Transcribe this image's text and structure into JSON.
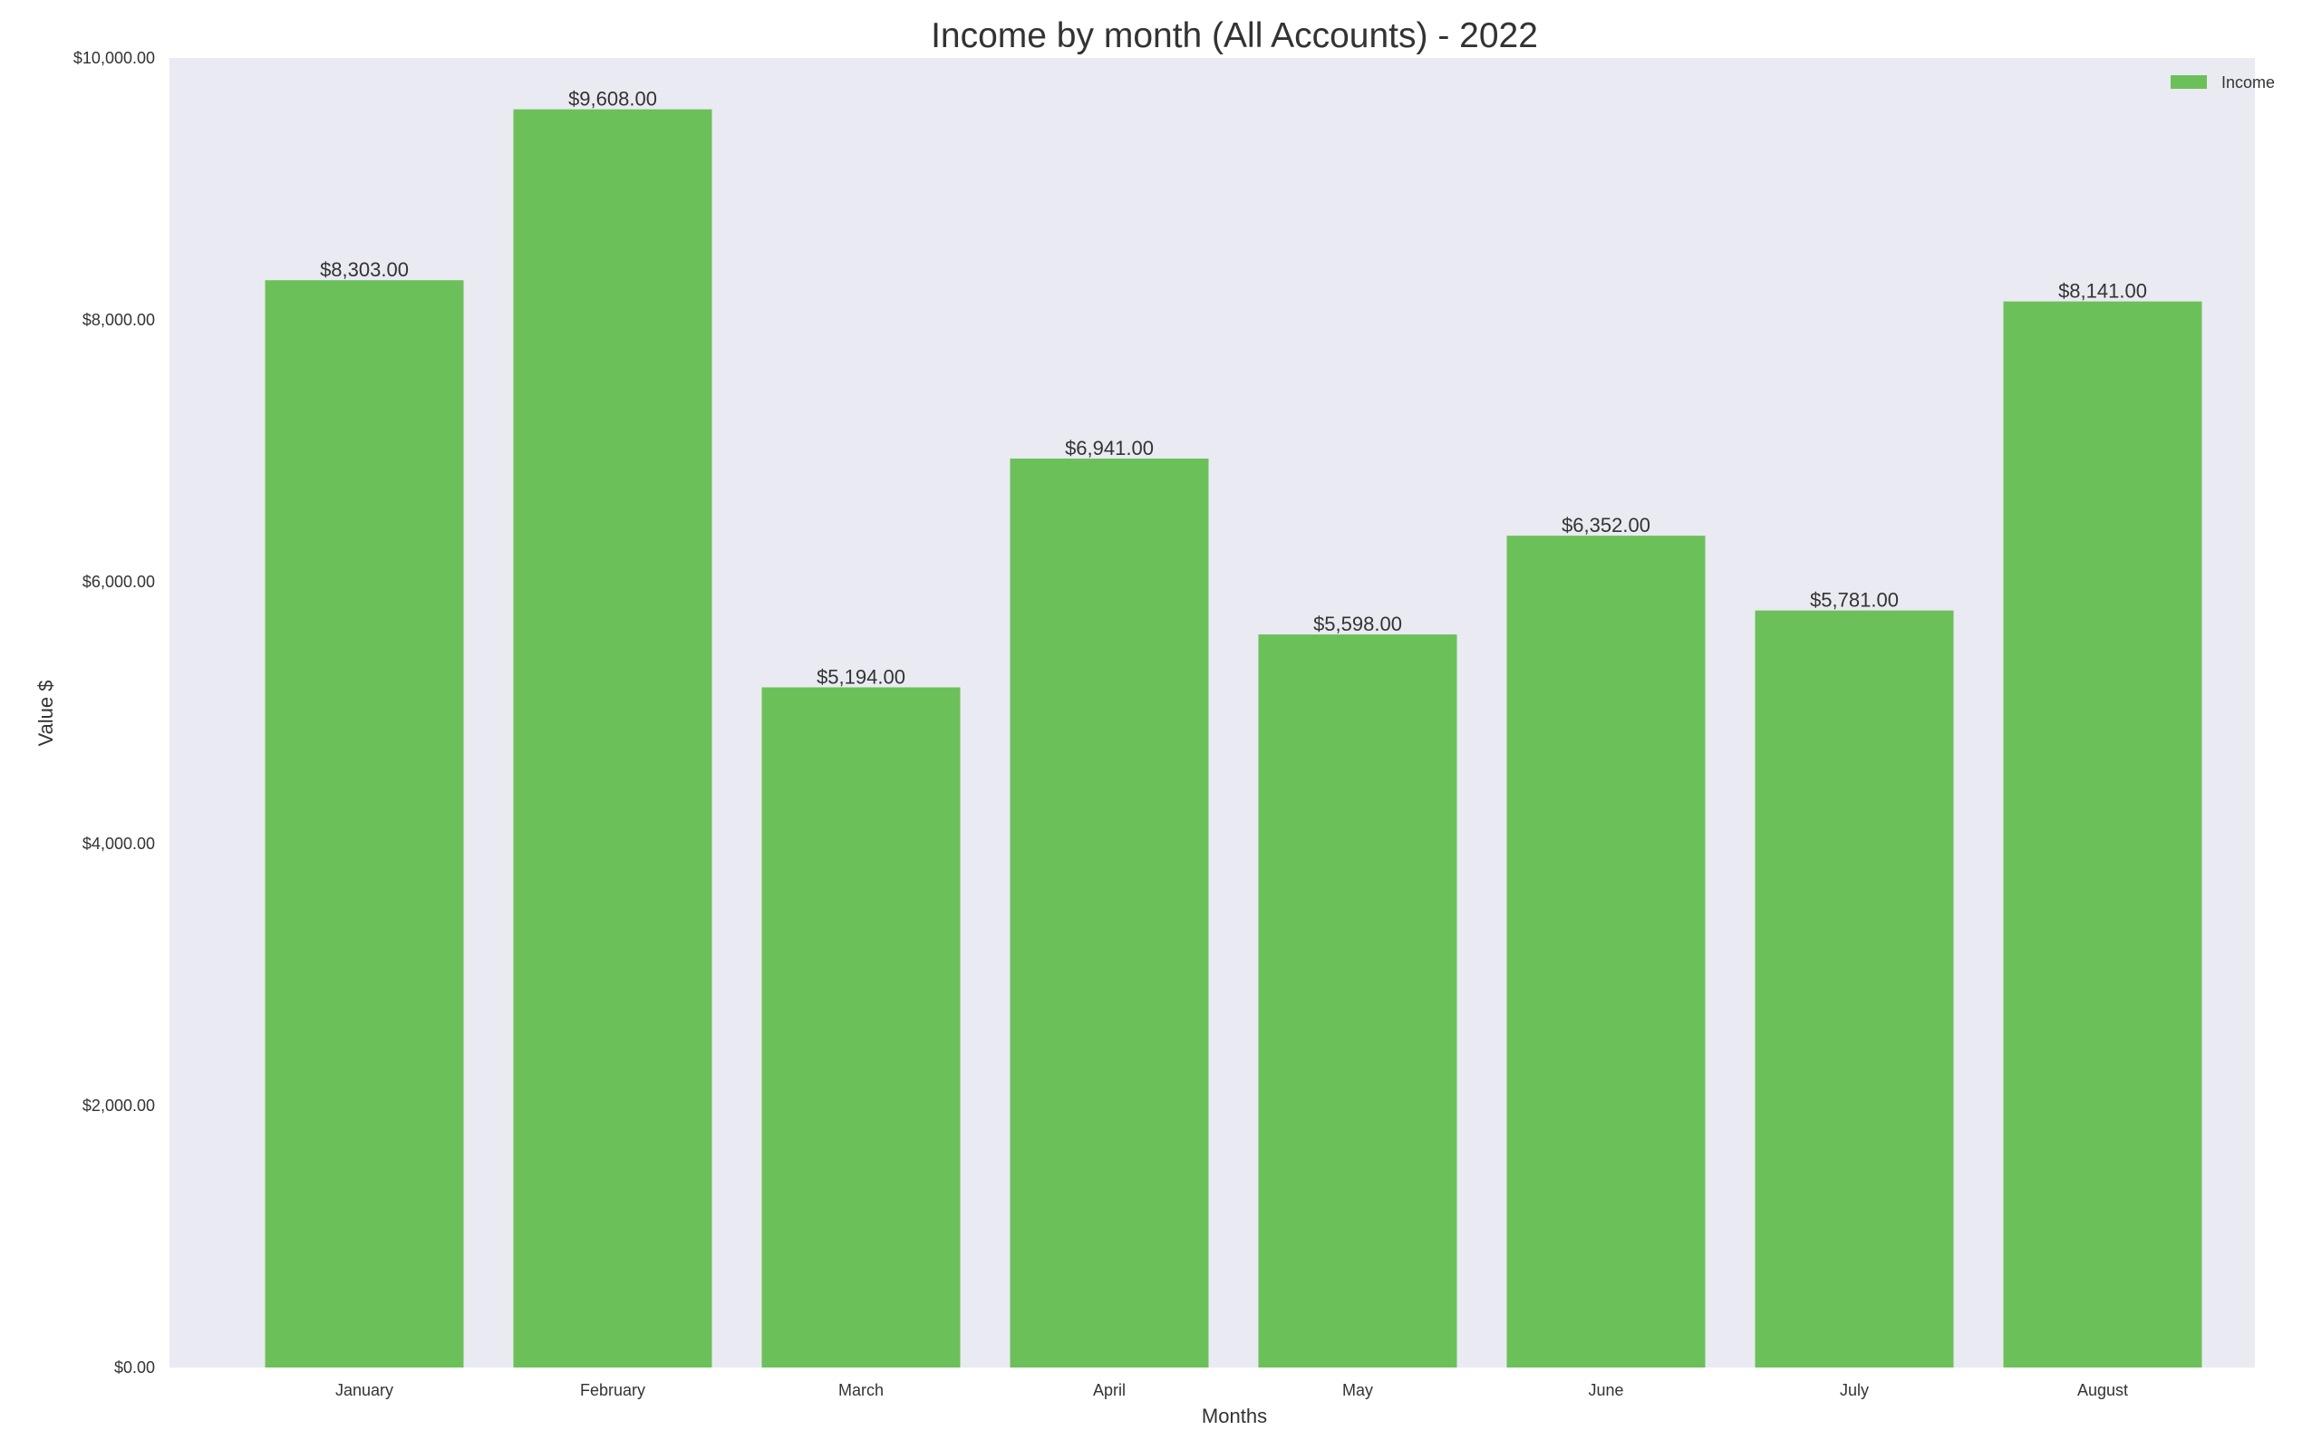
{
  "chart_data": {
    "type": "bar",
    "title": "Income by month (All Accounts) - 2022",
    "xlabel": "Months",
    "ylabel": "Value $",
    "categories": [
      "January",
      "February",
      "March",
      "April",
      "May",
      "June",
      "July",
      "August"
    ],
    "series": [
      {
        "name": "Income",
        "values": [
          8303,
          9608,
          5194,
          6941,
          5598,
          6352,
          5781,
          8141
        ],
        "data_labels": [
          "$8,303.00",
          "$9,608.00",
          "$5,194.00",
          "$6,941.00",
          "$5,598.00",
          "$6,352.00",
          "$5,781.00",
          "$8,141.00"
        ],
        "color": "#6cc05a"
      }
    ],
    "ylim": [
      0,
      10000
    ],
    "yticks": [
      0,
      2000,
      4000,
      6000,
      8000,
      10000
    ],
    "ytick_labels": [
      "$0.00",
      "$2,000.00",
      "$4,000.00",
      "$6,000.00",
      "$8,000.00",
      "$10,000.00"
    ],
    "grid": false,
    "legend_position": "top-right",
    "background_color": "#eaeaf2"
  }
}
